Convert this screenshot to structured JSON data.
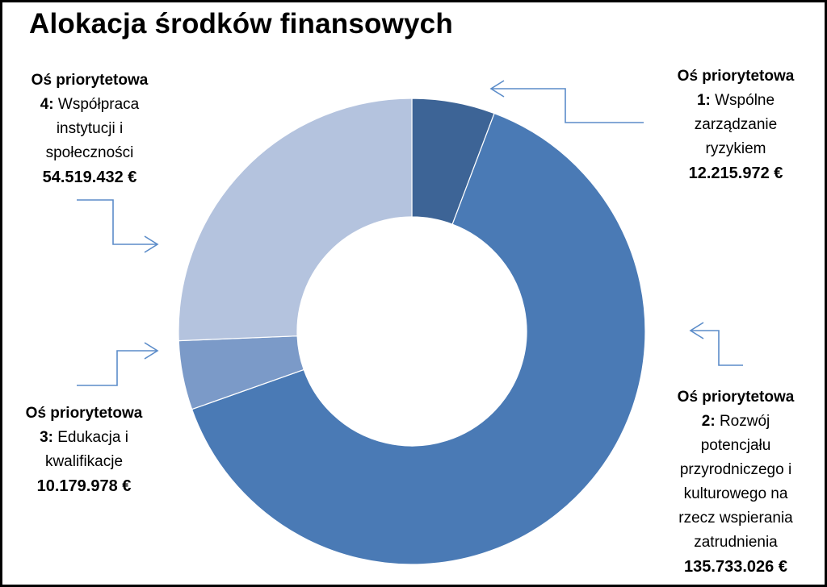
{
  "chart_data": {
    "type": "pie",
    "style": "doughnut",
    "title": "Alokacja środków finansowych",
    "legend": "none",
    "slices": [
      {
        "prefix": "Oś priorytetowa",
        "number": "1:",
        "name": "Wspólne zarządzanie ryzykiem",
        "name_lines": [
          "Wspólne",
          "zarządzanie",
          "ryzykiem"
        ],
        "amount_label": "12.215.972 €",
        "value": 12215972,
        "color": "#3d6496"
      },
      {
        "prefix": "Oś priorytetowa",
        "number": "2:",
        "name": "Rozwój potencjału przyrodniczego i kulturowego na rzecz wspierania zatrudnienia",
        "name_lines": [
          "Rozwój",
          "potencjału",
          "przyrodniczego i",
          "kulturowego na",
          "rzecz wspierania",
          "zatrudnienia"
        ],
        "amount_label": "135.733.026 €",
        "value": 135733026,
        "color": "#4a7ab5"
      },
      {
        "prefix": "Oś priorytetowa",
        "number": "3:",
        "name": "Edukacja i kwalifikacje",
        "name_lines": [
          "Edukacja i",
          "kwalifikacje"
        ],
        "amount_label": "10.179.978 €",
        "value": 10179978,
        "color": "#7b9ac8"
      },
      {
        "prefix": "Oś priorytetowa",
        "number": "4:",
        "name": "Współpraca instytucji i społeczności",
        "name_lines": [
          "Współpraca",
          "instytucji i",
          "społeczności"
        ],
        "amount_label": "54.519.432 €",
        "value": 54519432,
        "color": "#b4c3de"
      }
    ]
  }
}
